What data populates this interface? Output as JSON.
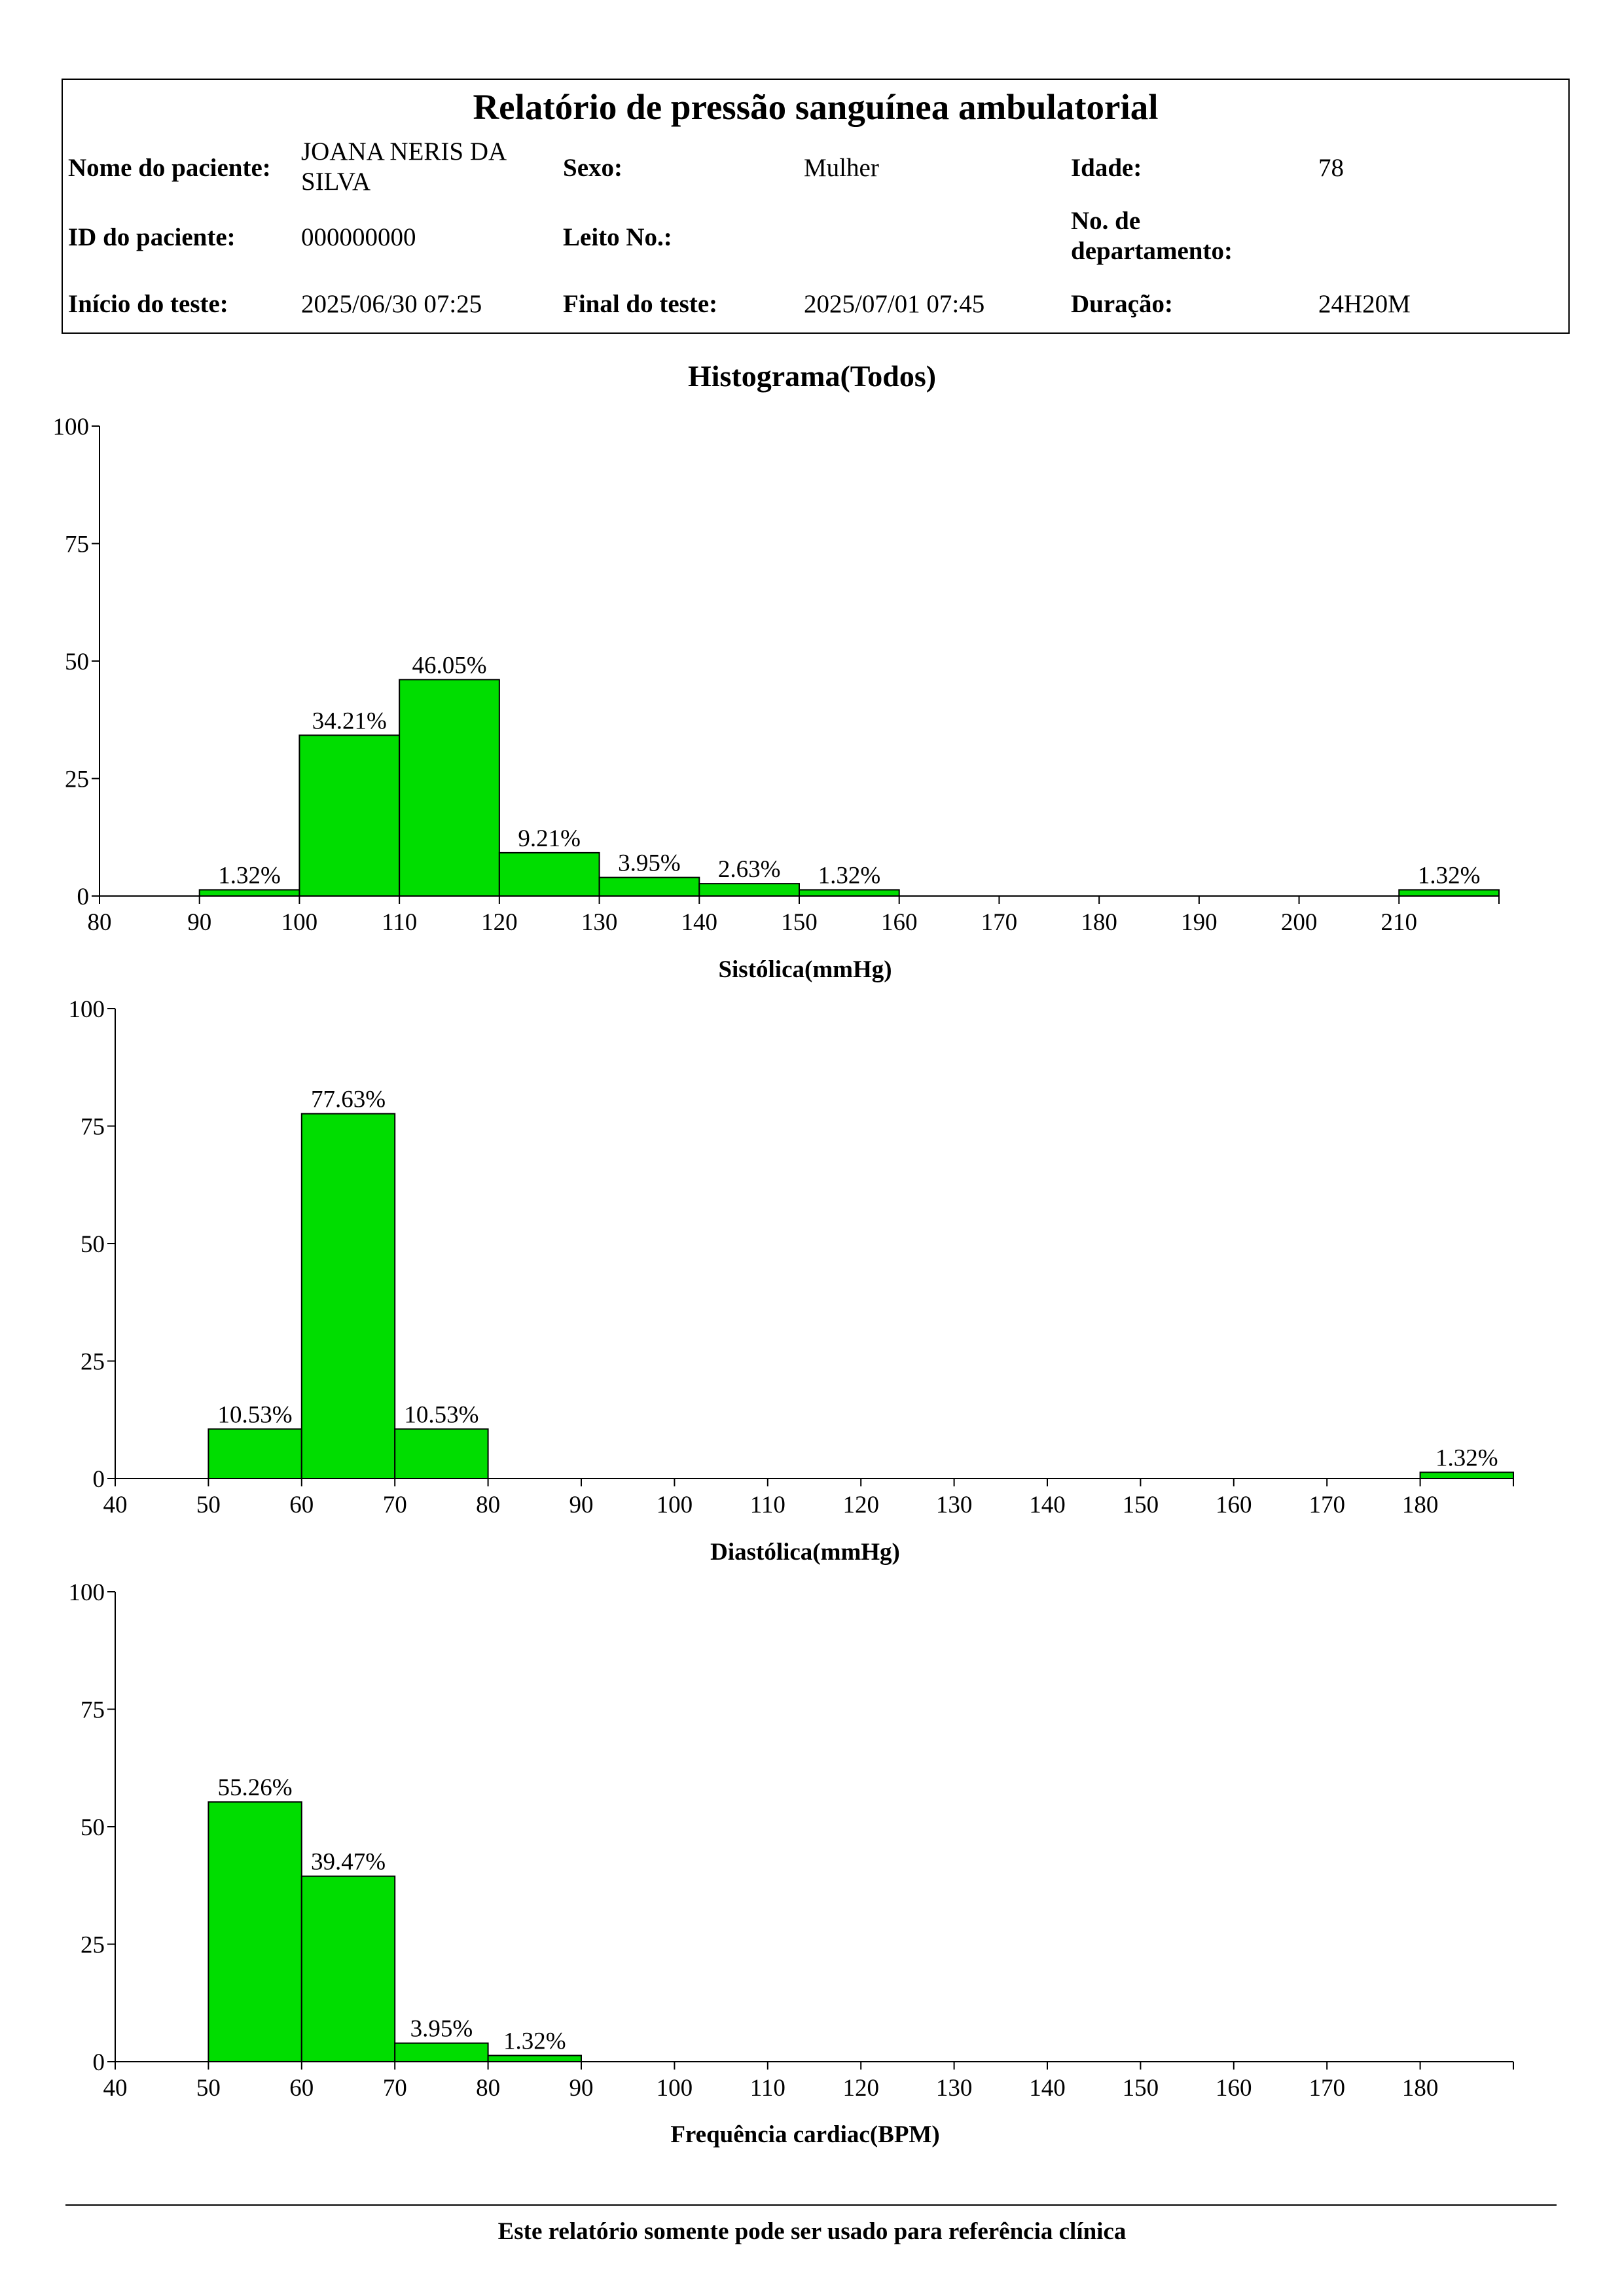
{
  "report": {
    "title": "Relatório de pressão sanguínea ambulatorial",
    "patient_name_label": "Nome do paciente:",
    "patient_name_line1": "JOANA NERIS DA",
    "patient_name_line2": "SILVA",
    "sex_label": "Sexo:",
    "sex": "Mulher",
    "age_label": "Idade:",
    "age": "78",
    "patient_id_label": "ID do paciente:",
    "patient_id": "000000000",
    "bed_label": "Leito No.:",
    "bed": "",
    "department_label_line1": "No. de",
    "department_label_line2": "departamento:",
    "department": "",
    "start_label": "Início do teste:",
    "start": "2025/06/30 07:25",
    "end_label": "Final do teste:",
    "end": "2025/07/01 07:45",
    "duration_label": "Duração:",
    "duration": "24H20M"
  },
  "histogram_title": "Histograma(Todos)",
  "footer": "Este relatório somente pode ser usado para referência clínica",
  "colors": {
    "bar_fill": "#00dd00",
    "bar_stroke": "#000000",
    "axis": "#000000"
  },
  "chart_data": [
    {
      "type": "bar",
      "title": "",
      "xlabel": "Sistólica(mmHg)",
      "ylabel": "",
      "ylim": [
        0,
        100
      ],
      "yticks": [
        0,
        25,
        50,
        75,
        100
      ],
      "xlim": [
        80,
        220
      ],
      "xticks": [
        80,
        90,
        100,
        110,
        120,
        130,
        140,
        150,
        160,
        170,
        180,
        190,
        200,
        210
      ],
      "bins": [
        {
          "from": 90,
          "to": 100,
          "value": 1.32,
          "label": "1.32%"
        },
        {
          "from": 100,
          "to": 110,
          "value": 34.21,
          "label": "34.21%"
        },
        {
          "from": 110,
          "to": 120,
          "value": 46.05,
          "label": "46.05%"
        },
        {
          "from": 120,
          "to": 130,
          "value": 9.21,
          "label": "9.21%"
        },
        {
          "from": 130,
          "to": 140,
          "value": 3.95,
          "label": "3.95%"
        },
        {
          "from": 140,
          "to": 150,
          "value": 2.63,
          "label": "2.63%"
        },
        {
          "from": 150,
          "to": 160,
          "value": 1.32,
          "label": "1.32%"
        },
        {
          "from": 210,
          "to": 220,
          "value": 1.32,
          "label": "1.32%"
        }
      ]
    },
    {
      "type": "bar",
      "title": "",
      "xlabel": "Diastólica(mmHg)",
      "ylabel": "",
      "ylim": [
        0,
        100
      ],
      "yticks": [
        0,
        25,
        50,
        75,
        100
      ],
      "xlim": [
        40,
        190
      ],
      "xticks": [
        40,
        50,
        60,
        70,
        80,
        90,
        100,
        110,
        120,
        130,
        140,
        150,
        160,
        170,
        180
      ],
      "bins": [
        {
          "from": 50,
          "to": 60,
          "value": 10.53,
          "label": "10.53%"
        },
        {
          "from": 60,
          "to": 70,
          "value": 77.63,
          "label": "77.63%"
        },
        {
          "from": 70,
          "to": 80,
          "value": 10.53,
          "label": "10.53%"
        },
        {
          "from": 180,
          "to": 190,
          "value": 1.32,
          "label": "1.32%"
        }
      ]
    },
    {
      "type": "bar",
      "title": "",
      "xlabel": "Frequência cardiac(BPM)",
      "ylabel": "",
      "ylim": [
        0,
        100
      ],
      "yticks": [
        0,
        25,
        50,
        75,
        100
      ],
      "xlim": [
        40,
        190
      ],
      "xticks": [
        40,
        50,
        60,
        70,
        80,
        90,
        100,
        110,
        120,
        130,
        140,
        150,
        160,
        170,
        180
      ],
      "bins": [
        {
          "from": 50,
          "to": 60,
          "value": 55.26,
          "label": "55.26%"
        },
        {
          "from": 60,
          "to": 70,
          "value": 39.47,
          "label": "39.47%"
        },
        {
          "from": 70,
          "to": 80,
          "value": 3.95,
          "label": "3.95%"
        },
        {
          "from": 80,
          "to": 90,
          "value": 1.32,
          "label": "1.32%"
        }
      ]
    }
  ]
}
